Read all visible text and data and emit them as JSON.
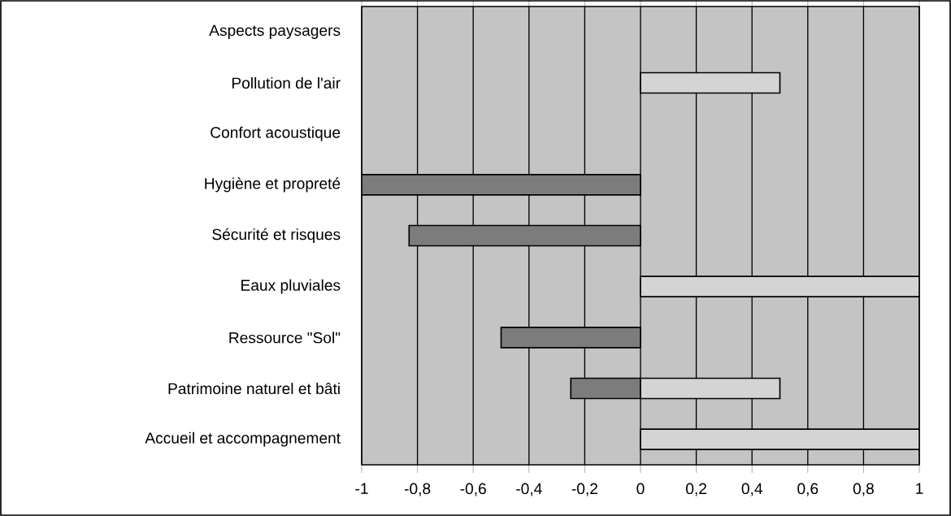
{
  "chart_data": {
    "type": "bar",
    "orientation": "horizontal",
    "stacked": true,
    "grid": "x",
    "categories": [
      "Aspects paysagers",
      "Pollution de l'air",
      "Confort acoustique",
      "Hygiène et propreté",
      "Sécurité et risques",
      "Eaux pluviales",
      "Ressource \"Sol\"",
      "Patrimoine naturel et bâti",
      "Accueil et accompagnement"
    ],
    "series": [
      {
        "color": "#7c7c7c",
        "values": [
          null,
          null,
          null,
          -1,
          -0.83,
          null,
          -0.5,
          -0.25,
          null
        ]
      },
      {
        "color": "#d4d4d4",
        "values": [
          null,
          0.5,
          null,
          null,
          null,
          1,
          null,
          0.5,
          1
        ]
      }
    ],
    "xlim": [
      -1,
      1
    ],
    "xticks": [
      {
        "value": -1,
        "label": "-1"
      },
      {
        "value": -0.8,
        "label": "-0,8"
      },
      {
        "value": -0.6,
        "label": "-0,6"
      },
      {
        "value": -0.4,
        "label": "-0,4"
      },
      {
        "value": -0.2,
        "label": "-0,2"
      },
      0,
      {
        "value": 0.2,
        "label": "0,2"
      },
      {
        "value": 0.4,
        "label": "0,4"
      },
      {
        "value": 0.6,
        "label": "0,6"
      },
      {
        "value": 0.8,
        "label": "0,8"
      },
      1
    ]
  }
}
